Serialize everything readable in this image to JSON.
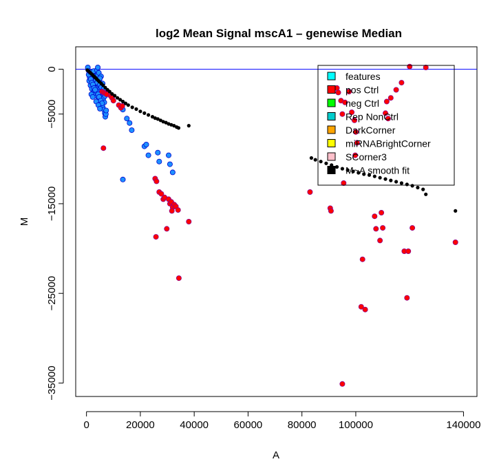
{
  "chart_data": {
    "type": "scatter",
    "title": "log2 Mean Signal mscA1  –  genewise Median",
    "xlabel": "A",
    "ylabel": "M",
    "xlim": [
      -4000,
      145000
    ],
    "ylim": [
      -36500,
      2500
    ],
    "x_ticks": [
      0,
      20000,
      40000,
      60000,
      80000,
      100000,
      140000
    ],
    "x_tick_labels": [
      "0",
      "20000",
      "40000",
      "60000",
      "80000",
      "100000",
      "140000"
    ],
    "y_ticks": [
      0,
      -5000,
      -15000,
      -25000,
      -35000
    ],
    "y_tick_labels": [
      "0",
      "−5000",
      "−15000",
      "−25000",
      "−35000"
    ],
    "reference_line_y": 0,
    "reference_line_color": "#0000ff",
    "legend": {
      "placement": "top-right",
      "entries": [
        {
          "label": "features",
          "color": "#00ffff"
        },
        {
          "label": "pos Ctrl",
          "color": "#ff0000"
        },
        {
          "label": "neg Ctrl",
          "color": "#00ff00"
        },
        {
          "label": "Rep NonCtrl",
          "color": "#00cdcd"
        },
        {
          "label": "DarkCorner",
          "color": "#ffa500"
        },
        {
          "label": "miRNABrightCorner",
          "color": "#ffff00"
        },
        {
          "label": "SCorner3",
          "color": "#ffc0cb"
        },
        {
          "label": "M~A smooth fit",
          "color": "#000000"
        }
      ]
    },
    "series": [
      {
        "fill": "#1e90ff",
        "stroke": "#0000cd",
        "points": [
          [
            500,
            200
          ],
          [
            900,
            -200
          ],
          [
            1300,
            -400
          ],
          [
            1700,
            -700
          ],
          [
            2100,
            -900
          ],
          [
            2500,
            -1100
          ],
          [
            2900,
            -1400
          ],
          [
            3300,
            -1700
          ],
          [
            3700,
            -2000
          ],
          [
            4100,
            -2300
          ],
          [
            1000,
            -1300
          ],
          [
            1500,
            -1800
          ],
          [
            2000,
            -2200
          ],
          [
            2500,
            -2600
          ],
          [
            3000,
            -1000
          ],
          [
            3500,
            -1200
          ],
          [
            4000,
            -1500
          ],
          [
            4500,
            -900
          ],
          [
            5000,
            -1700
          ],
          [
            5500,
            -2000
          ],
          [
            3000,
            -2400
          ],
          [
            3500,
            -2700
          ],
          [
            4000,
            -3000
          ],
          [
            4500,
            -3300
          ],
          [
            5000,
            -3600
          ],
          [
            5500,
            -3900
          ],
          [
            6000,
            -4200
          ],
          [
            6500,
            -4500
          ],
          [
            6800,
            -4900
          ],
          [
            7000,
            -5300
          ],
          [
            2200,
            -700
          ],
          [
            2600,
            -500
          ],
          [
            3100,
            -800
          ],
          [
            3600,
            -300
          ],
          [
            4200,
            -600
          ],
          [
            4800,
            -1200
          ],
          [
            5200,
            -2500
          ],
          [
            5700,
            -2900
          ],
          [
            6200,
            -3300
          ],
          [
            6600,
            -3700
          ],
          [
            1800,
            -2800
          ],
          [
            2300,
            -3100
          ],
          [
            2800,
            -1900
          ],
          [
            3300,
            -2100
          ],
          [
            3800,
            -2500
          ],
          [
            4300,
            -2800
          ],
          [
            4700,
            -3100
          ],
          [
            5300,
            -3500
          ],
          [
            5800,
            -3800
          ],
          [
            6300,
            -2700
          ],
          [
            1200,
            -900
          ],
          [
            1600,
            -1100
          ],
          [
            2000,
            -1500
          ],
          [
            2400,
            -1700
          ],
          [
            2800,
            -2100
          ],
          [
            3200,
            -2300
          ],
          [
            3600,
            -3600
          ],
          [
            4400,
            -4000
          ],
          [
            5000,
            -4400
          ],
          [
            7200,
            -5000
          ],
          [
            800,
            -600
          ],
          [
            1400,
            -300
          ],
          [
            2700,
            -200
          ],
          [
            3900,
            -100
          ],
          [
            4600,
            -400
          ],
          [
            5400,
            -800
          ],
          [
            6000,
            -1600
          ],
          [
            6400,
            -2200
          ],
          [
            6900,
            -3000
          ],
          [
            7300,
            -4600
          ],
          [
            4200,
            200
          ],
          [
            5000,
            -1000
          ],
          [
            13500,
            -4500
          ],
          [
            15000,
            -5500
          ],
          [
            16000,
            -6000
          ],
          [
            16800,
            -6800
          ],
          [
            21500,
            -8600
          ],
          [
            22200,
            -8400
          ],
          [
            23000,
            -9600
          ],
          [
            26500,
            -9300
          ],
          [
            27000,
            -10300
          ],
          [
            30500,
            -9600
          ],
          [
            31000,
            -10600
          ],
          [
            32000,
            -11500
          ],
          [
            13500,
            -12300
          ]
        ]
      },
      {
        "fill": "#ff0000",
        "stroke": "#8b008b",
        "points": [
          [
            5800,
            -2500
          ],
          [
            6400,
            -2600
          ],
          [
            7000,
            -2700
          ],
          [
            7500,
            -2800
          ],
          [
            9000,
            -3000
          ],
          [
            9500,
            -3200
          ],
          [
            10000,
            -3500
          ],
          [
            12000,
            -4000
          ],
          [
            12800,
            -4300
          ],
          [
            13300,
            -4100
          ],
          [
            6300,
            -8800
          ],
          [
            25500,
            -12200
          ],
          [
            26000,
            -12500
          ],
          [
            27000,
            -13700
          ],
          [
            27800,
            -13900
          ],
          [
            28500,
            -14500
          ],
          [
            29000,
            -14300
          ],
          [
            30500,
            -14500
          ],
          [
            31000,
            -15000
          ],
          [
            31500,
            -14800
          ],
          [
            32000,
            -15400
          ],
          [
            32600,
            -15100
          ],
          [
            33200,
            -15300
          ],
          [
            31700,
            -15800
          ],
          [
            34000,
            -15700
          ],
          [
            29800,
            -17800
          ],
          [
            25800,
            -18700
          ],
          [
            38000,
            -17000
          ],
          [
            34300,
            -23300
          ],
          [
            83000,
            -13700
          ],
          [
            90500,
            -15500
          ],
          [
            90800,
            -15800
          ],
          [
            93000,
            -2100
          ],
          [
            93500,
            -2600
          ],
          [
            94500,
            -3500
          ],
          [
            95000,
            -5000
          ],
          [
            96000,
            -3700
          ],
          [
            97500,
            -2500
          ],
          [
            98500,
            -4800
          ],
          [
            99500,
            -5700
          ],
          [
            100000,
            -7000
          ],
          [
            100500,
            -8200
          ],
          [
            99800,
            -9600
          ],
          [
            95500,
            -12700
          ],
          [
            102500,
            -21200
          ],
          [
            102000,
            -26500
          ],
          [
            103500,
            -26800
          ],
          [
            107000,
            -16400
          ],
          [
            107500,
            -17800
          ],
          [
            109000,
            -19100
          ],
          [
            110000,
            -17700
          ],
          [
            109500,
            -16000
          ],
          [
            111000,
            -4900
          ],
          [
            111500,
            -3600
          ],
          [
            113000,
            -3200
          ],
          [
            115000,
            -2300
          ],
          [
            112000,
            -5500
          ],
          [
            117000,
            -1500
          ],
          [
            118000,
            -20300
          ],
          [
            119500,
            -20300
          ],
          [
            121000,
            -17700
          ],
          [
            119000,
            -25500
          ],
          [
            120000,
            300
          ],
          [
            126000,
            200
          ],
          [
            137000,
            -19300
          ],
          [
            95000,
            -35100
          ]
        ]
      },
      {
        "fill": "#000000",
        "stroke": "#000000",
        "points": [
          [
            300,
            -100
          ],
          [
            800,
            -200
          ],
          [
            1300,
            -350
          ],
          [
            1800,
            -500
          ],
          [
            2300,
            -650
          ],
          [
            2800,
            -800
          ],
          [
            3300,
            -950
          ],
          [
            3800,
            -1100
          ],
          [
            4300,
            -1250
          ],
          [
            4800,
            -1400
          ],
          [
            5500,
            -1600
          ],
          [
            6200,
            -1800
          ],
          [
            7000,
            -2050
          ],
          [
            7800,
            -2300
          ],
          [
            8600,
            -2500
          ],
          [
            9500,
            -2750
          ],
          [
            10500,
            -2950
          ],
          [
            11500,
            -3200
          ],
          [
            12500,
            -3400
          ],
          [
            13500,
            -3600
          ],
          [
            14500,
            -3800
          ],
          [
            15500,
            -4000
          ],
          [
            17000,
            -4250
          ],
          [
            18500,
            -4450
          ],
          [
            20000,
            -4700
          ],
          [
            21500,
            -4900
          ],
          [
            23000,
            -5100
          ],
          [
            24500,
            -5300
          ],
          [
            25500,
            -5450
          ],
          [
            26500,
            -5550
          ],
          [
            27500,
            -5700
          ],
          [
            28500,
            -5850
          ],
          [
            29500,
            -5950
          ],
          [
            30500,
            -6100
          ],
          [
            31500,
            -6200
          ],
          [
            32500,
            -6300
          ],
          [
            33500,
            -6450
          ],
          [
            34200,
            -6550
          ],
          [
            38000,
            -6300
          ],
          [
            83500,
            -9900
          ],
          [
            85000,
            -10100
          ],
          [
            87000,
            -10300
          ],
          [
            89000,
            -10500
          ],
          [
            91000,
            -10700
          ],
          [
            93000,
            -10900
          ],
          [
            95000,
            -11100
          ],
          [
            97000,
            -11250
          ],
          [
            99000,
            -11400
          ],
          [
            101000,
            -11550
          ],
          [
            103000,
            -11700
          ],
          [
            105000,
            -11800
          ],
          [
            107000,
            -11950
          ],
          [
            109000,
            -12100
          ],
          [
            111000,
            -12250
          ],
          [
            113000,
            -12400
          ],
          [
            115000,
            -12550
          ],
          [
            117000,
            -12700
          ],
          [
            119000,
            -12850
          ],
          [
            121000,
            -13000
          ],
          [
            123000,
            -13200
          ],
          [
            125000,
            -13400
          ],
          [
            126000,
            -13950
          ],
          [
            137000,
            -15800
          ]
        ]
      }
    ]
  }
}
